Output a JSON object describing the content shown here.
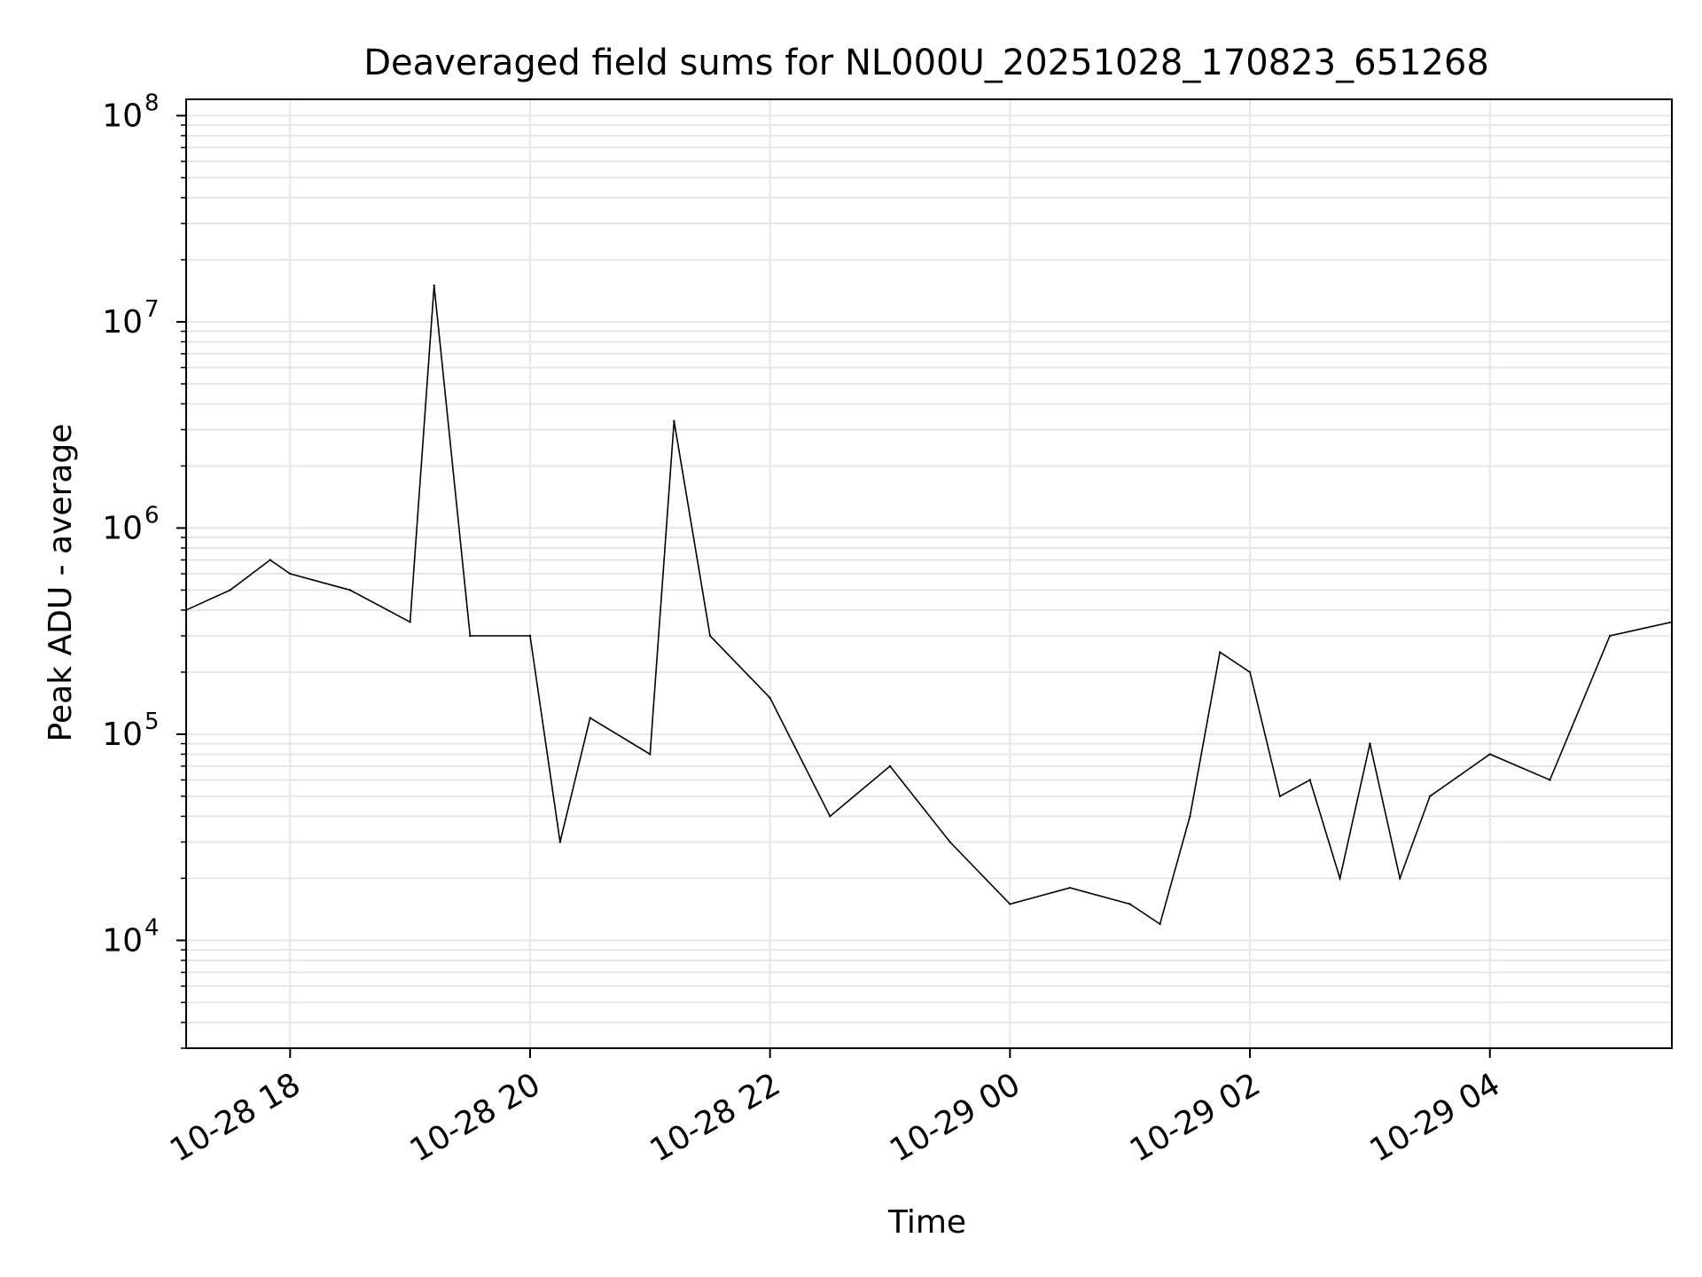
{
  "chart_data": {
    "type": "line",
    "title": "Deaveraged field sums for NL000U_20251028_170823_651268",
    "xlabel": "Time",
    "ylabel": "Peak ADU - average",
    "xlim": [
      "2025-10-28 17:08",
      "2025-10-29 05:31"
    ],
    "ylim": [
      3000,
      120000000
    ],
    "yscale": "log",
    "grid": true,
    "line_color": "#000000",
    "grid_color": "#e6e6e6",
    "x_ticks": [
      {
        "label": "10-28 18",
        "time": "2025-10-28 18:00"
      },
      {
        "label": "10-28 20",
        "time": "2025-10-28 20:00"
      },
      {
        "label": "10-28 22",
        "time": "2025-10-28 22:00"
      },
      {
        "label": "10-29 00",
        "time": "2025-10-29 00:00"
      },
      {
        "label": "10-29 02",
        "time": "2025-10-29 02:00"
      },
      {
        "label": "10-29 04",
        "time": "2025-10-29 04:00"
      }
    ],
    "y_ticks": [
      {
        "base": "10",
        "exp": "4",
        "value": 10000
      },
      {
        "base": "10",
        "exp": "5",
        "value": 100000
      },
      {
        "base": "10",
        "exp": "6",
        "value": 1000000
      },
      {
        "base": "10",
        "exp": "7",
        "value": 10000000
      },
      {
        "base": "10",
        "exp": "8",
        "value": 100000000
      }
    ],
    "series": [
      {
        "values": [
          {
            "time": "2025-10-28 17:08",
            "y": 400000
          },
          {
            "time": "2025-10-28 17:30",
            "y": 500000
          },
          {
            "time": "2025-10-28 17:50",
            "y": 700000
          },
          {
            "time": "2025-10-28 18:00",
            "y": 600000
          },
          {
            "time": "2025-10-28 18:30",
            "y": 500000
          },
          {
            "time": "2025-10-28 19:00",
            "y": 350000
          },
          {
            "time": "2025-10-28 19:12",
            "y": 15000000
          },
          {
            "time": "2025-10-28 19:30",
            "y": 300000
          },
          {
            "time": "2025-10-28 20:00",
            "y": 300000
          },
          {
            "time": "2025-10-28 20:15",
            "y": 30000
          },
          {
            "time": "2025-10-28 20:30",
            "y": 120000
          },
          {
            "time": "2025-10-28 21:00",
            "y": 80000
          },
          {
            "time": "2025-10-28 21:12",
            "y": 3300000
          },
          {
            "time": "2025-10-28 21:30",
            "y": 300000
          },
          {
            "time": "2025-10-28 22:00",
            "y": 150000
          },
          {
            "time": "2025-10-28 22:30",
            "y": 40000
          },
          {
            "time": "2025-10-28 23:00",
            "y": 70000
          },
          {
            "time": "2025-10-28 23:30",
            "y": 30000
          },
          {
            "time": "2025-10-29 00:00",
            "y": 15000
          },
          {
            "time": "2025-10-29 00:30",
            "y": 18000
          },
          {
            "time": "2025-10-29 01:00",
            "y": 15000
          },
          {
            "time": "2025-10-29 01:15",
            "y": 12000
          },
          {
            "time": "2025-10-29 01:30",
            "y": 40000
          },
          {
            "time": "2025-10-29 01:45",
            "y": 250000
          },
          {
            "time": "2025-10-29 02:00",
            "y": 200000
          },
          {
            "time": "2025-10-29 02:15",
            "y": 50000
          },
          {
            "time": "2025-10-29 02:30",
            "y": 60000
          },
          {
            "time": "2025-10-29 02:45",
            "y": 20000
          },
          {
            "time": "2025-10-29 03:00",
            "y": 90000
          },
          {
            "time": "2025-10-29 03:15",
            "y": 20000
          },
          {
            "time": "2025-10-29 03:30",
            "y": 50000
          },
          {
            "time": "2025-10-29 04:00",
            "y": 80000
          },
          {
            "time": "2025-10-29 04:30",
            "y": 60000
          },
          {
            "time": "2025-10-29 05:00",
            "y": 300000
          },
          {
            "time": "2025-10-29 05:31",
            "y": 350000
          }
        ]
      }
    ]
  }
}
